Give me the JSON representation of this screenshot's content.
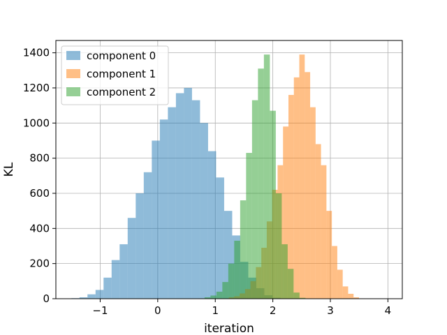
{
  "chart_data": {
    "type": "histogram",
    "title": "",
    "xlabel": "iteration",
    "ylabel": "KL",
    "xlim": [
      -1.77,
      4.25
    ],
    "ylim": [
      0,
      1470
    ],
    "xticks": [
      -1,
      0,
      1,
      2,
      3,
      4
    ],
    "xtick_labels": [
      "−1",
      "0",
      "1",
      "2",
      "3",
      "4"
    ],
    "yticks": [
      0,
      200,
      400,
      600,
      800,
      1000,
      1200,
      1400
    ],
    "ytick_labels": [
      "0",
      "200",
      "400",
      "600",
      "800",
      "1000",
      "1200",
      "1400"
    ],
    "grid": true,
    "legend_position": "top-left",
    "alpha": 0.5,
    "series": [
      {
        "name": "component 0",
        "color": "#1f77b4",
        "bin_start": -1.5,
        "bin_width": 0.1397,
        "counts": [
          3,
          8,
          25,
          50,
          120,
          220,
          310,
          460,
          600,
          720,
          900,
          1020,
          1090,
          1170,
          1200,
          1130,
          1000,
          840,
          690,
          500,
          360,
          210,
          120,
          60,
          20,
          5
        ]
      },
      {
        "name": "component 1",
        "color": "#ff7f0e",
        "bin_start": 1.14,
        "bin_width": 0.0943,
        "counts": [
          2,
          8,
          14,
          30,
          55,
          100,
          180,
          290,
          440,
          620,
          760,
          980,
          1160,
          1260,
          1390,
          1290,
          1090,
          880,
          760,
          500,
          300,
          165,
          70,
          28,
          8,
          2
        ]
      },
      {
        "name": "component 2",
        "color": "#2ca02c",
        "bin_start": 0.71,
        "bin_width": 0.1032,
        "counts": [
          2,
          8,
          18,
          40,
          95,
          200,
          330,
          560,
          830,
          1130,
          1310,
          1390,
          1070,
          600,
          310,
          170,
          35,
          5,
          2
        ]
      }
    ]
  }
}
